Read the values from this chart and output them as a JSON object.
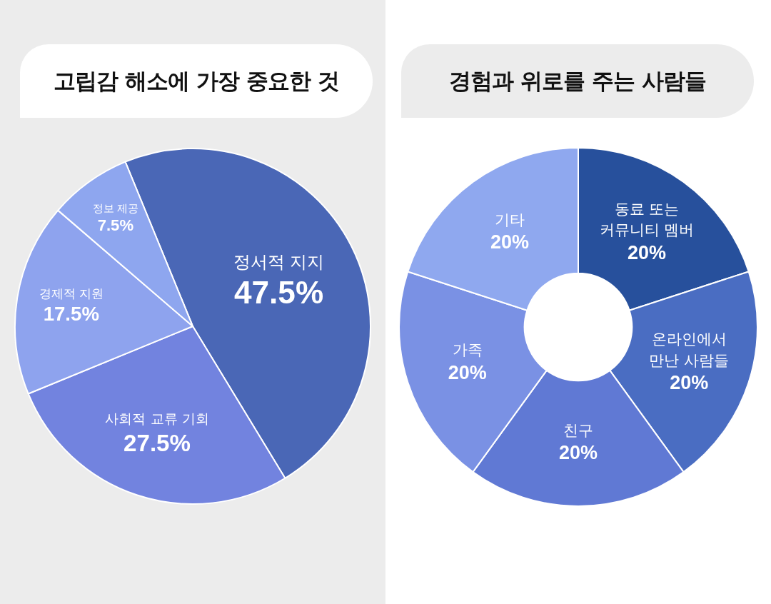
{
  "chart_data": [
    {
      "type": "pie",
      "title": "고립감 해소에 가장 중요한 것",
      "categories": [
        "정서적 지지",
        "사회적 교류 기회",
        "경제적 지원",
        "정보 제공"
      ],
      "values": [
        47.5,
        27.5,
        17.5,
        7.5
      ],
      "colors": [
        "#4a67b6",
        "#7283df",
        "#8ea3ee",
        "#8ea6ef"
      ],
      "value_labels": [
        "47.5%",
        "27.5%",
        "17.5%",
        "7.5%"
      ]
    },
    {
      "type": "donut",
      "title": "경험과 위로를 주는 사람들",
      "categories": [
        "동료 또는 커뮤니티 멤버",
        "온라인에서 만난 사람들",
        "친구",
        "가족",
        "기타"
      ],
      "values": [
        20,
        20,
        20,
        20,
        20
      ],
      "colors": [
        "#27509c",
        "#4a6dc2",
        "#6079d4",
        "#7a91e4",
        "#8fa8ef"
      ],
      "value_labels": [
        "20%",
        "20%",
        "20%",
        "20%",
        "20%"
      ]
    }
  ]
}
